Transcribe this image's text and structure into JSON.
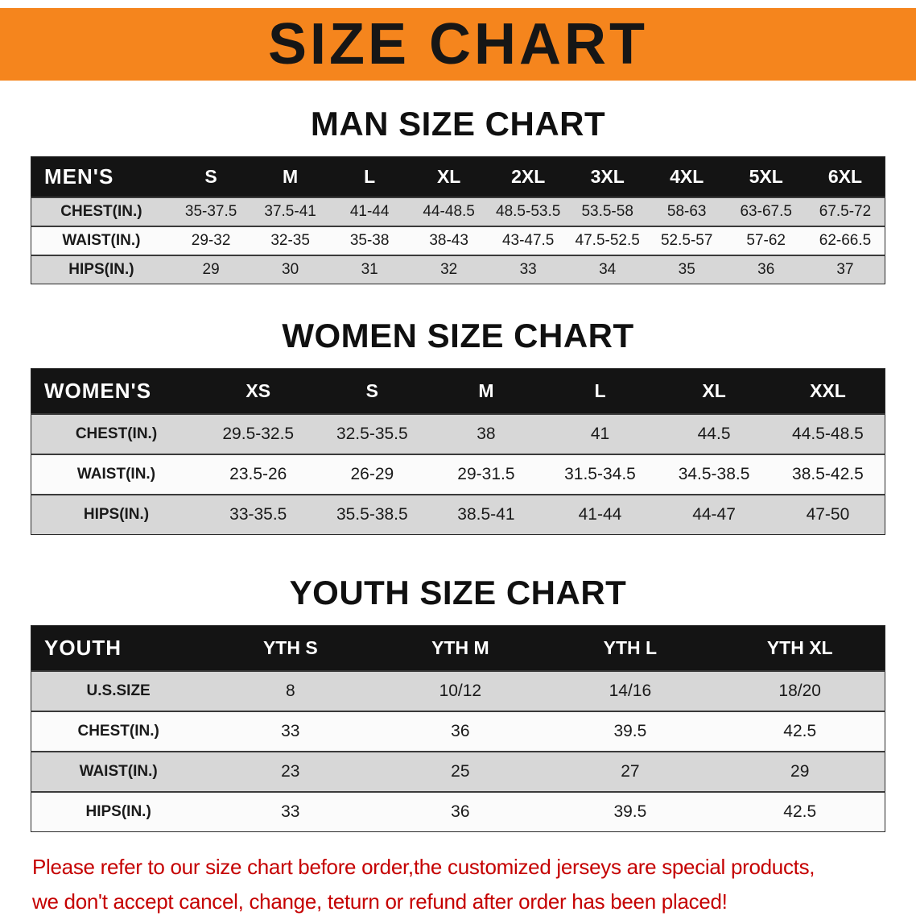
{
  "banner": {
    "title": "SIZE CHART",
    "bg_color": "#f5851d",
    "text_color": "#161616"
  },
  "sections": [
    {
      "heading": "MAN SIZE CHART",
      "table": {
        "header": [
          "MEN'S",
          "S",
          "M",
          "L",
          "XL",
          "2XL",
          "3XL",
          "4XL",
          "5XL",
          "6XL"
        ],
        "rows": [
          [
            "CHEST(IN.)",
            "35-37.5",
            "37.5-41",
            "41-44",
            "44-48.5",
            "48.5-53.5",
            "53.5-58",
            "58-63",
            "63-67.5",
            "67.5-72"
          ],
          [
            "WAIST(IN.)",
            "29-32",
            "32-35",
            "35-38",
            "38-43",
            "43-47.5",
            "47.5-52.5",
            "52.5-57",
            "57-62",
            "62-66.5"
          ],
          [
            "HIPS(IN.)",
            "29",
            "30",
            "31",
            "32",
            "33",
            "34",
            "35",
            "36",
            "37"
          ]
        ]
      }
    },
    {
      "heading": "WOMEN SIZE CHART",
      "table": {
        "header": [
          "WOMEN'S",
          "XS",
          "S",
          "M",
          "L",
          "XL",
          "XXL"
        ],
        "rows": [
          [
            "CHEST(IN.)",
            "29.5-32.5",
            "32.5-35.5",
            "38",
            "41",
            "44.5",
            "44.5-48.5"
          ],
          [
            "WAIST(IN.)",
            "23.5-26",
            "26-29",
            "29-31.5",
            "31.5-34.5",
            "34.5-38.5",
            "38.5-42.5"
          ],
          [
            "HIPS(IN.)",
            "33-35.5",
            "35.5-38.5",
            "38.5-41",
            "41-44",
            "44-47",
            "47-50"
          ]
        ]
      }
    },
    {
      "heading": "YOUTH SIZE CHART",
      "table": {
        "header": [
          "YOUTH",
          "YTH S",
          "YTH M",
          "YTH L",
          "YTH XL"
        ],
        "rows": [
          [
            "U.S.SIZE",
            "8",
            "10/12",
            "14/16",
            "18/20"
          ],
          [
            "CHEST(IN.)",
            "33",
            "36",
            "39.5",
            "42.5"
          ],
          [
            "WAIST(IN.)",
            "23",
            "25",
            "27",
            "29"
          ],
          [
            "HIPS(IN.)",
            "33",
            "36",
            "39.5",
            "42.5"
          ]
        ]
      }
    }
  ],
  "disclaimer": {
    "line1": "Please refer to our size chart before order,the customized jerseys are special products,",
    "line2": "we don't accept cancel, change, teturn or refund after order has been placed!",
    "color": "#c50000"
  }
}
